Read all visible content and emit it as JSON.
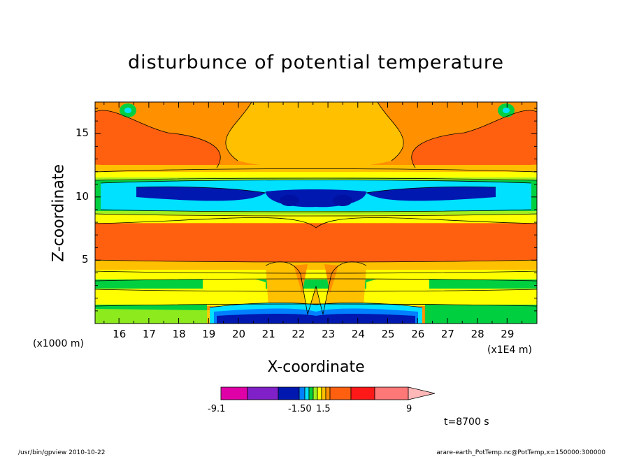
{
  "chart_data": {
    "type": "heatmap",
    "title": "disturbunce of potential temperature",
    "xlabel": "X-coordinate",
    "ylabel": "Z-coordinate",
    "x_unit": "(x1E4 m)",
    "y_unit": "(x1000 m)",
    "xlim": [
      15.2,
      30.0
    ],
    "ylim": [
      0,
      17.5
    ],
    "x_ticks": [
      "16",
      "17",
      "18",
      "19",
      "20",
      "21",
      "22",
      "23",
      "24",
      "25",
      "26",
      "27",
      "28",
      "29"
    ],
    "y_ticks": [
      "5",
      "10",
      "15"
    ],
    "time_label": "t=8700 s",
    "colorbar": {
      "colors": [
        "#e000a8",
        "#8020c8",
        "#0018b0",
        "#0080ff",
        "#00e0ff",
        "#00d040",
        "#a0f020",
        "#ffff00",
        "#ffc000",
        "#ff9000",
        "#ff6010",
        "#ff1818",
        "#ff7878",
        "#ffb8b8"
      ],
      "labels": [
        "-9.1",
        "-1.50",
        "1.5",
        "9"
      ]
    },
    "bands_description": [
      {
        "z": [
          0,
          1.5
        ],
        "value": "negative (blue) at center, yellow/green at edges"
      },
      {
        "z": [
          1.5,
          3.5
        ],
        "value": "slightly positive (yellow) with green patches"
      },
      {
        "z": [
          4,
          8.5
        ],
        "value": "positive (orange)"
      },
      {
        "z": [
          9,
          11.5
        ],
        "value": "negative (cyan to dark blue)"
      },
      {
        "z": [
          12,
          17.5
        ],
        "value": "positive (orange/yellow)"
      }
    ]
  },
  "footer": {
    "left": "/usr/bin/gpview   2010-10-22",
    "right": "arare-earth_PotTemp.nc@PotTemp,x=150000:300000"
  }
}
